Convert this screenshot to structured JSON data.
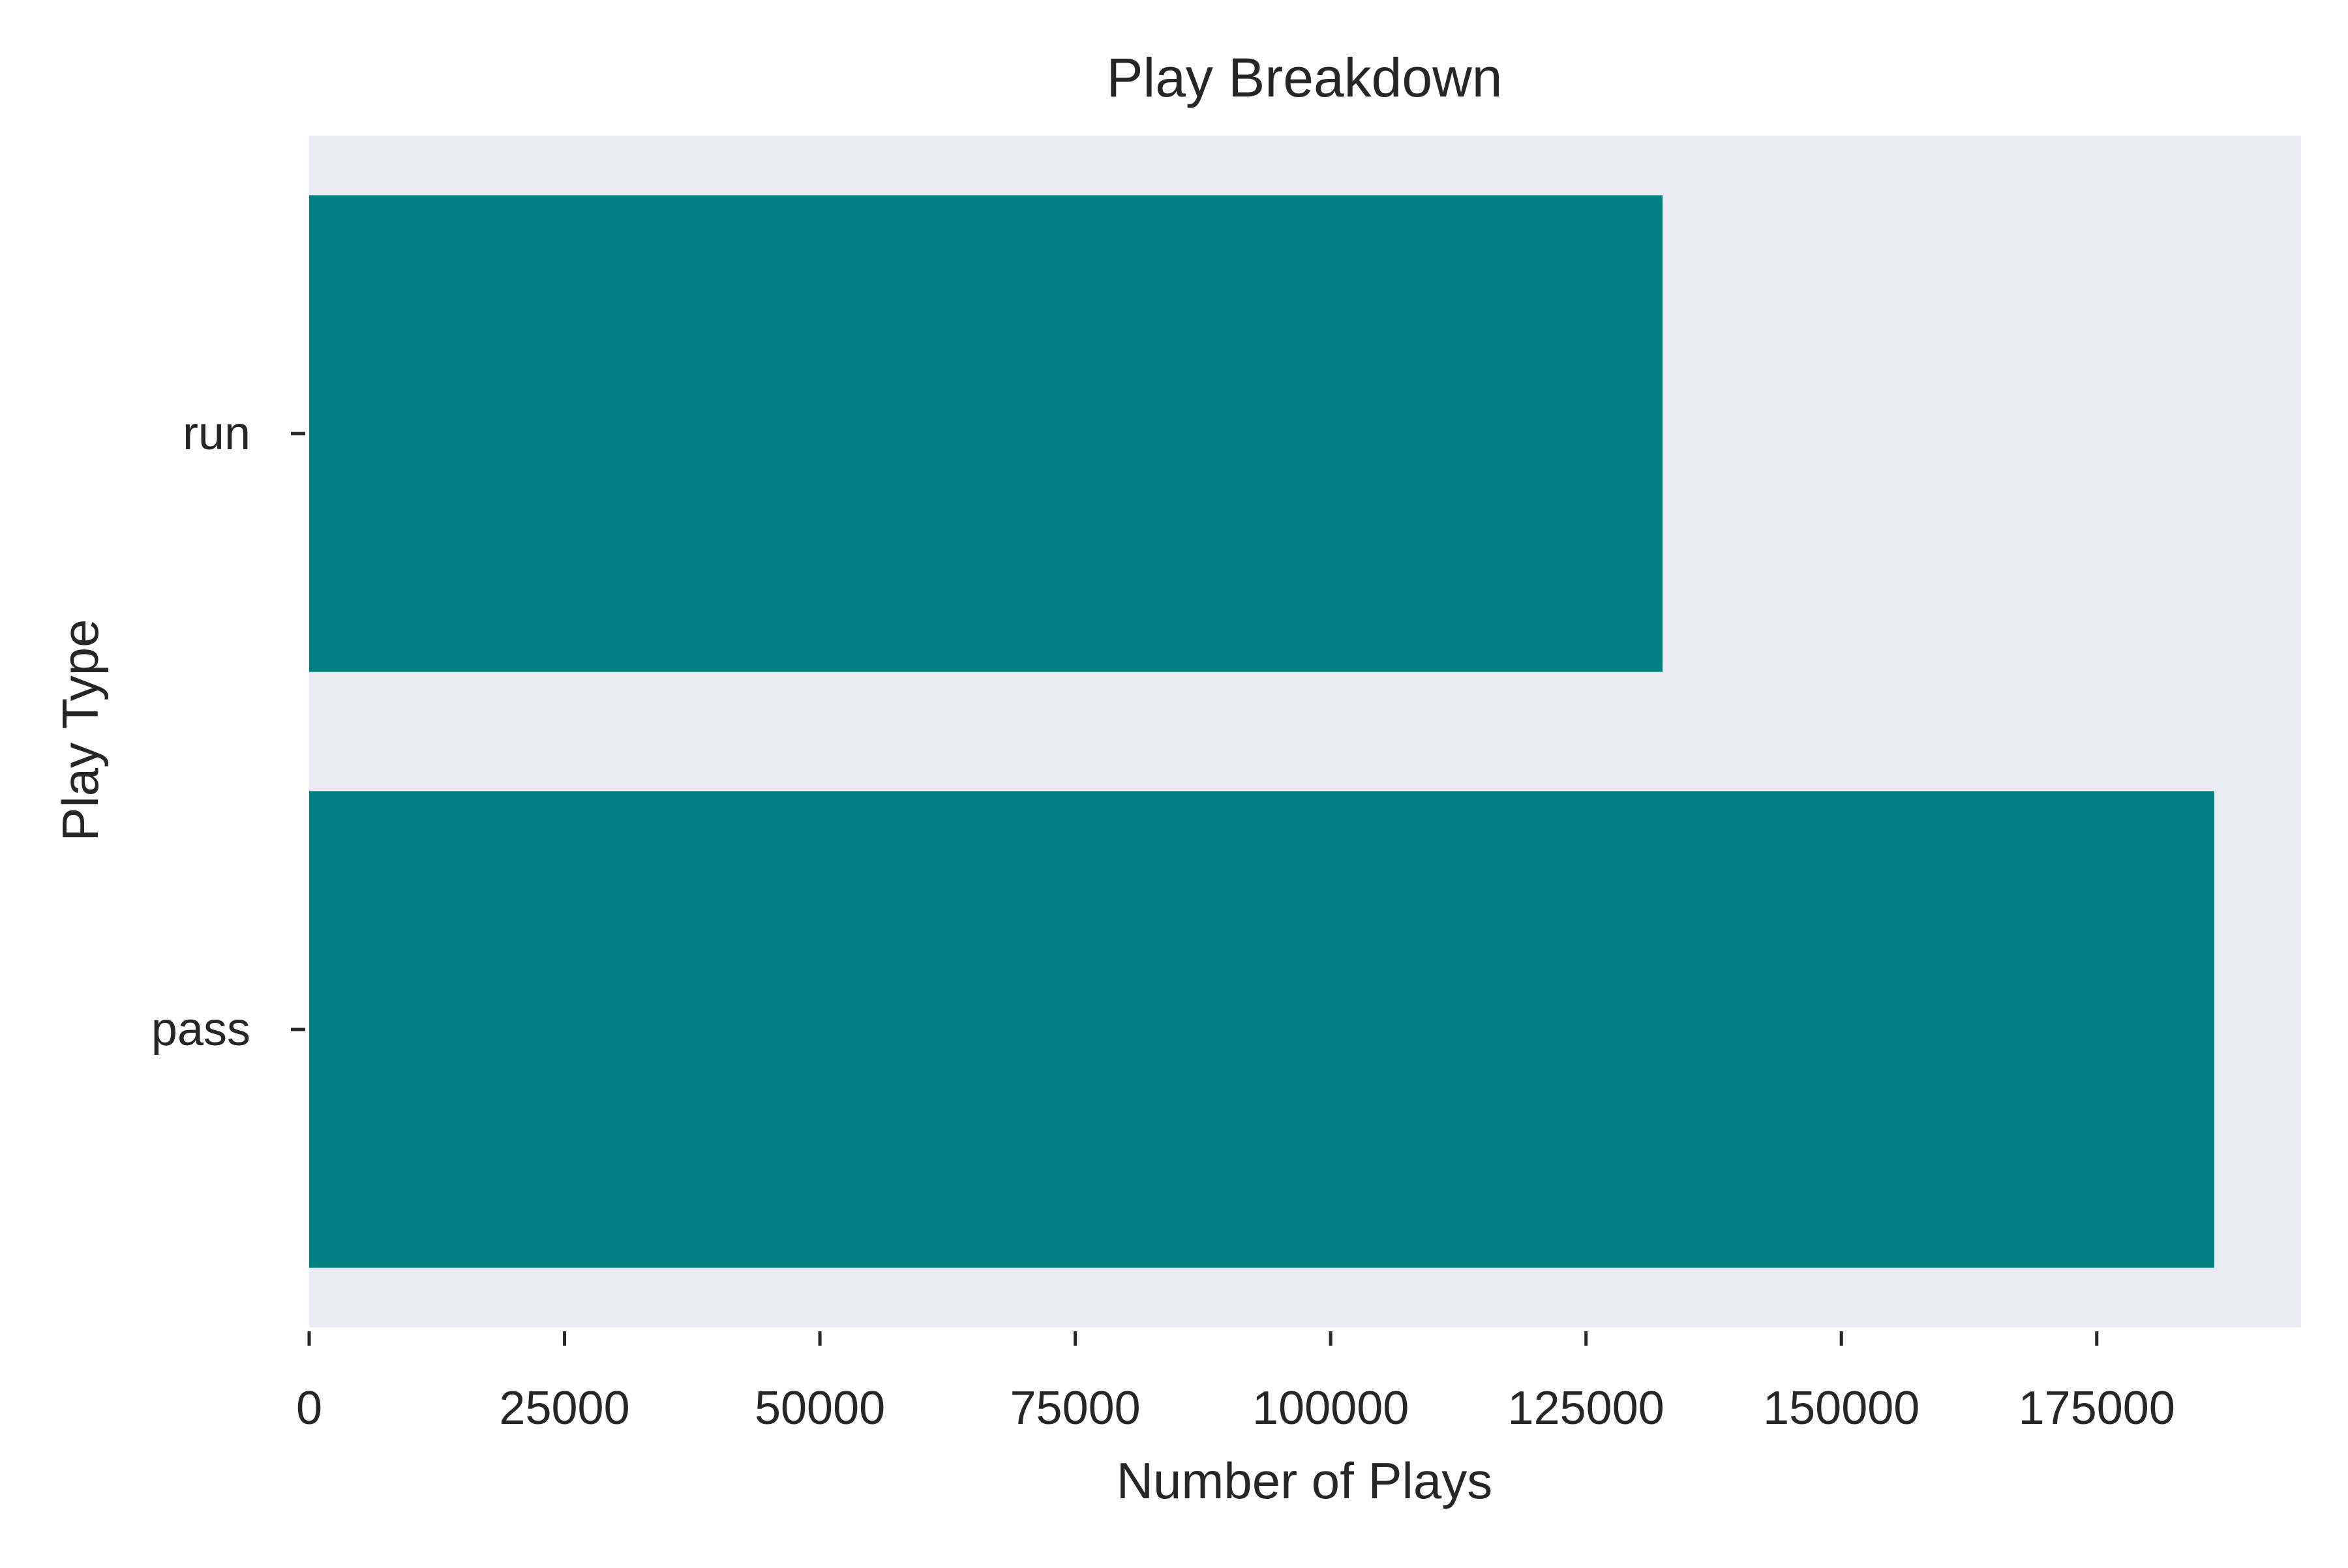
{
  "chart_data": {
    "type": "bar",
    "orientation": "horizontal",
    "title": "Play Breakdown",
    "xlabel": "Number of Plays",
    "ylabel": "Play Type",
    "categories": [
      "run",
      "pass"
    ],
    "values": [
      132500,
      186500
    ],
    "xlim": [
      0,
      195000
    ],
    "xticks": [
      0,
      25000,
      50000,
      75000,
      100000,
      125000,
      150000,
      175000
    ],
    "xtick_labels": [
      "0",
      "25000",
      "50000",
      "75000",
      "100000",
      "125000",
      "150000",
      "175000"
    ],
    "grid": false,
    "legend": "none",
    "colors": {
      "bar": "#008080",
      "plot_background": "#eaeaf2",
      "text": "#262626"
    }
  }
}
